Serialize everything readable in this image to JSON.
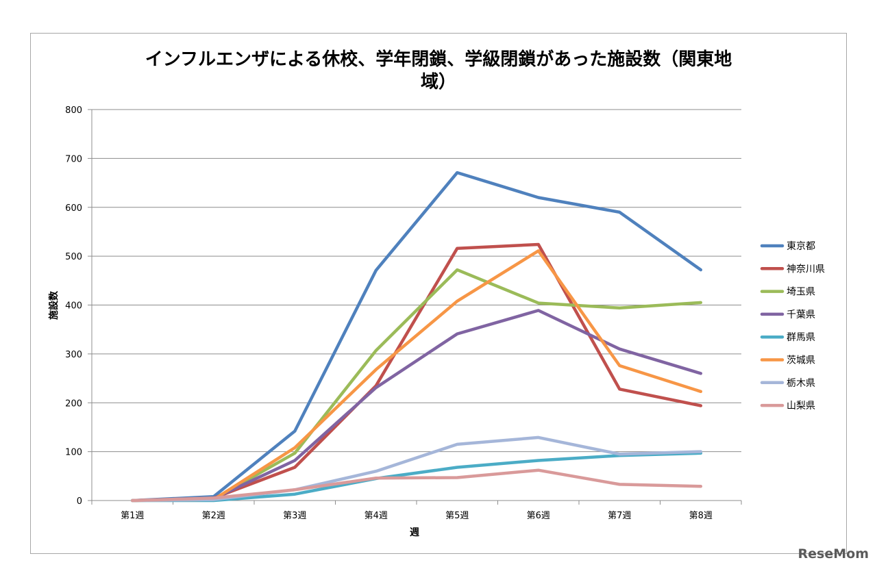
{
  "chart_data": {
    "type": "line",
    "title_lines": [
      "インフルエンザによる休校、学年閉鎖、学級閉鎖があった施設数（関東地",
      "域）"
    ],
    "xlabel": "週",
    "ylabel": "施設数",
    "categories": [
      "第1週",
      "第2週",
      "第3週",
      "第4週",
      "第5週",
      "第6週",
      "第7週",
      "第8週"
    ],
    "ylim": [
      0,
      800
    ],
    "yticks": [
      0,
      100,
      200,
      300,
      400,
      500,
      600,
      700,
      800
    ],
    "grid": true,
    "legend_position": "right",
    "series": [
      {
        "name": "東京都",
        "color": "#4f81bd",
        "values": [
          0,
          8,
          142,
          471,
          671,
          620,
          590,
          472
        ]
      },
      {
        "name": "神奈川県",
        "color": "#c0504d",
        "values": [
          0,
          5,
          68,
          235,
          516,
          524,
          228,
          194
        ]
      },
      {
        "name": "埼玉県",
        "color": "#9bbb59",
        "values": [
          0,
          3,
          97,
          307,
          472,
          404,
          394,
          405
        ]
      },
      {
        "name": "千葉県",
        "color": "#8064a2",
        "values": [
          0,
          4,
          82,
          231,
          341,
          389,
          310,
          260
        ]
      },
      {
        "name": "群馬県",
        "color": "#4bacc6",
        "values": [
          0,
          0,
          13,
          45,
          68,
          82,
          92,
          97
        ]
      },
      {
        "name": "茨城県",
        "color": "#f79646",
        "values": [
          0,
          2,
          108,
          268,
          408,
          511,
          276,
          223
        ]
      },
      {
        "name": "栃木県",
        "color": "#a5b6d9",
        "values": [
          0,
          2,
          22,
          60,
          115,
          129,
          95,
          100
        ]
      },
      {
        "name": "山梨県",
        "color": "#d99a9a",
        "values": [
          0,
          5,
          22,
          46,
          47,
          62,
          33,
          29
        ]
      }
    ]
  },
  "watermark": {
    "text": "ReseMom"
  }
}
